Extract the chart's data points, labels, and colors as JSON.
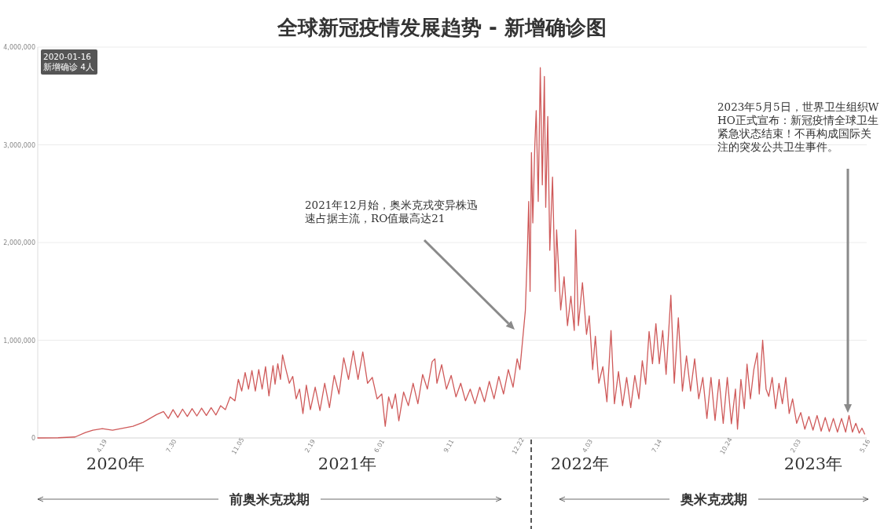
{
  "chart_data": {
    "type": "line",
    "title": "全球新冠疫情发展趋势 - 新增确诊图",
    "xlim": [
      "2020-01-16",
      "2023-05-19"
    ],
    "ylim": [
      0,
      4000000
    ],
    "xticks": [
      {
        "value": "2020-04-19",
        "label": "4.19"
      },
      {
        "value": "2020-07-30",
        "label": "7.30"
      },
      {
        "value": "2020-11-05",
        "label": "11.05"
      },
      {
        "value": "2021-02-19",
        "label": "2.19"
      },
      {
        "value": "2021-06-01",
        "label": "6.01"
      },
      {
        "value": "2021-09-11",
        "label": "9.11"
      },
      {
        "value": "2021-12-22",
        "label": "12.22"
      },
      {
        "value": "2022-04-03",
        "label": "4.03"
      },
      {
        "value": "2022-07-14",
        "label": "7.14"
      },
      {
        "value": "2022-10-24",
        "label": "10.24"
      },
      {
        "value": "2023-02-03",
        "label": "2.03"
      },
      {
        "value": "2023-05-16",
        "label": "5.16"
      }
    ],
    "yticks": [
      0,
      {
        "value": 1000000,
        "label": "1,000,000"
      },
      {
        "value": 2000000,
        "label": "2,000,000"
      },
      {
        "value": 3000000,
        "label": "3,000,000"
      },
      {
        "value": 4000000,
        "label": "4,000,000"
      }
    ],
    "grid": "y",
    "x": [
      "2020-01-16",
      "2020-02-15",
      "2020-03-11",
      "2020-03-26",
      "2020-04-06",
      "2020-04-20",
      "2020-05-05",
      "2020-05-20",
      "2020-06-04",
      "2020-06-19",
      "2020-06-29",
      "2020-07-09",
      "2020-07-19",
      "2020-07-26",
      "2020-08-02",
      "2020-08-09",
      "2020-08-16",
      "2020-08-23",
      "2020-08-30",
      "2020-09-06",
      "2020-09-13",
      "2020-09-20",
      "2020-09-27",
      "2020-10-04",
      "2020-10-11",
      "2020-10-18",
      "2020-10-25",
      "2020-11-01",
      "2020-11-06",
      "2020-11-11",
      "2020-11-16",
      "2020-11-21",
      "2020-11-26",
      "2020-12-01",
      "2020-12-06",
      "2020-12-11",
      "2020-12-16",
      "2020-12-21",
      "2020-12-27",
      "2020-12-30",
      "2021-01-03",
      "2021-01-07",
      "2021-01-10",
      "2021-01-15",
      "2021-01-20",
      "2021-01-25",
      "2021-01-30",
      "2021-02-04",
      "2021-02-09",
      "2021-02-14",
      "2021-02-20",
      "2021-02-27",
      "2021-03-06",
      "2021-03-13",
      "2021-03-20",
      "2021-03-27",
      "2021-04-03",
      "2021-04-10",
      "2021-04-17",
      "2021-04-24",
      "2021-05-01",
      "2021-05-08",
      "2021-05-15",
      "2021-05-22",
      "2021-05-29",
      "2021-06-05",
      "2021-06-10",
      "2021-06-15",
      "2021-06-20",
      "2021-06-25",
      "2021-06-30",
      "2021-07-07",
      "2021-07-14",
      "2021-07-21",
      "2021-07-28",
      "2021-08-04",
      "2021-08-11",
      "2021-08-18",
      "2021-08-22",
      "2021-08-25",
      "2021-09-01",
      "2021-09-08",
      "2021-09-15",
      "2021-09-22",
      "2021-09-29",
      "2021-10-06",
      "2021-10-13",
      "2021-10-20",
      "2021-10-27",
      "2021-11-03",
      "2021-11-10",
      "2021-11-17",
      "2021-11-24",
      "2021-12-01",
      "2021-12-08",
      "2021-12-15",
      "2021-12-21",
      "2021-12-25",
      "2021-12-29",
      "2022-01-02",
      "2022-01-05",
      "2022-01-07",
      "2022-01-09",
      "2022-01-11",
      "2022-01-13",
      "2022-01-16",
      "2022-01-18",
      "2022-01-21",
      "2022-01-24",
      "2022-01-27",
      "2022-01-30",
      "2022-02-01",
      "2022-02-04",
      "2022-02-07",
      "2022-02-11",
      "2022-02-15",
      "2022-02-17",
      "2022-02-23",
      "2022-02-28",
      "2022-03-05",
      "2022-03-10",
      "2022-03-15",
      "2022-03-17",
      "2022-03-21",
      "2022-03-27",
      "2022-04-02",
      "2022-04-06",
      "2022-04-11",
      "2022-04-15",
      "2022-04-20",
      "2022-04-26",
      "2022-05-02",
      "2022-05-08",
      "2022-05-13",
      "2022-05-19",
      "2022-05-25",
      "2022-05-31",
      "2022-06-06",
      "2022-06-12",
      "2022-06-18",
      "2022-06-23",
      "2022-06-28",
      "2022-07-03",
      "2022-07-08",
      "2022-07-13",
      "2022-07-18",
      "2022-07-23",
      "2022-07-28",
      "2022-08-04",
      "2022-08-09",
      "2022-08-15",
      "2022-08-21",
      "2022-08-27",
      "2022-09-02",
      "2022-09-08",
      "2022-09-14",
      "2022-09-20",
      "2022-09-26",
      "2022-10-02",
      "2022-10-08",
      "2022-10-14",
      "2022-10-20",
      "2022-10-26",
      "2022-11-01",
      "2022-11-07",
      "2022-11-10",
      "2022-11-15",
      "2022-11-20",
      "2022-11-24",
      "2022-11-29",
      "2022-12-04",
      "2022-12-09",
      "2022-12-12",
      "2022-12-17",
      "2022-12-22",
      "2022-12-26",
      "2022-12-31",
      "2023-01-05",
      "2023-01-10",
      "2023-01-15",
      "2023-01-20",
      "2023-01-25",
      "2023-01-30",
      "2023-02-05",
      "2023-02-11",
      "2023-02-17",
      "2023-02-23",
      "2023-03-01",
      "2023-03-07",
      "2023-03-13",
      "2023-03-19",
      "2023-03-25",
      "2023-03-31",
      "2023-04-06",
      "2023-04-12",
      "2023-04-18",
      "2023-04-23",
      "2023-04-28",
      "2023-05-03",
      "2023-05-08",
      "2023-05-12",
      "2023-05-16"
    ],
    "series": [
      {
        "color": "#cf5a5a",
        "values": [
          0,
          2000,
          10000,
          55000,
          80000,
          95000,
          80000,
          100000,
          120000,
          160000,
          200000,
          240000,
          270000,
          200000,
          290000,
          210000,
          295000,
          220000,
          300000,
          225000,
          305000,
          230000,
          310000,
          235000,
          330000,
          290000,
          420000,
          380000,
          600000,
          480000,
          670000,
          500000,
          690000,
          480000,
          700000,
          500000,
          730000,
          430000,
          740000,
          550000,
          760000,
          600000,
          850000,
          700000,
          560000,
          630000,
          400000,
          500000,
          250000,
          540000,
          290000,
          520000,
          280000,
          560000,
          310000,
          640000,
          450000,
          820000,
          600000,
          890000,
          600000,
          880000,
          560000,
          620000,
          400000,
          450000,
          120000,
          420000,
          300000,
          450000,
          175000,
          470000,
          330000,
          560000,
          350000,
          650000,
          500000,
          780000,
          810000,
          560000,
          750000,
          500000,
          640000,
          420000,
          560000,
          380000,
          500000,
          350000,
          520000,
          370000,
          580000,
          400000,
          630000,
          450000,
          700000,
          520000,
          810000,
          700000,
          1000000,
          1300000,
          1900000,
          2420000,
          1500000,
          2920000,
          2200000,
          3000000,
          3350000,
          2420000,
          3790000,
          2590000,
          3700000,
          2360000,
          3290000,
          1920000,
          2670000,
          1500000,
          2130000,
          1310000,
          1650000,
          1150000,
          1450000,
          1100000,
          2130000,
          1150000,
          1590000,
          1060000,
          1250000,
          700000,
          1040000,
          560000,
          730000,
          370000,
          1100000,
          350000,
          680000,
          330000,
          620000,
          310000,
          640000,
          400000,
          790000,
          550000,
          1090000,
          760000,
          1170000,
          760000,
          1100000,
          650000,
          1460000,
          560000,
          1230000,
          480000,
          840000,
          480000,
          810000,
          400000,
          620000,
          200000,
          620000,
          180000,
          600000,
          150000,
          620000,
          145000,
          500000,
          90000,
          600000,
          300000,
          755000,
          400000,
          700000,
          870000,
          450000,
          1000000,
          500000,
          425000,
          620000,
          300000,
          560000,
          350000,
          620000,
          250000,
          400000,
          150000,
          260000,
          90000,
          220000,
          80000,
          230000,
          70000,
          210000,
          65000,
          200000,
          60000,
          200000,
          60000,
          230000,
          60000,
          150000,
          50000,
          100000,
          40000
        ]
      }
    ],
    "annotations": [
      "2020-01-16 新增确诊 4人",
      "2021年12月始，奥米克戎变异株迅速占据主流，RO值最高达21",
      "2023年5月5日，世界卫生组织WHO正式宣布：新冠疫情全球卫生紧急状态结束！不再构成国际关注的突发公共卫生事件。",
      "2020年",
      "2021年",
      "2022年",
      "2023年",
      "前奥米克戎期",
      "奥米克戎期"
    ]
  }
}
